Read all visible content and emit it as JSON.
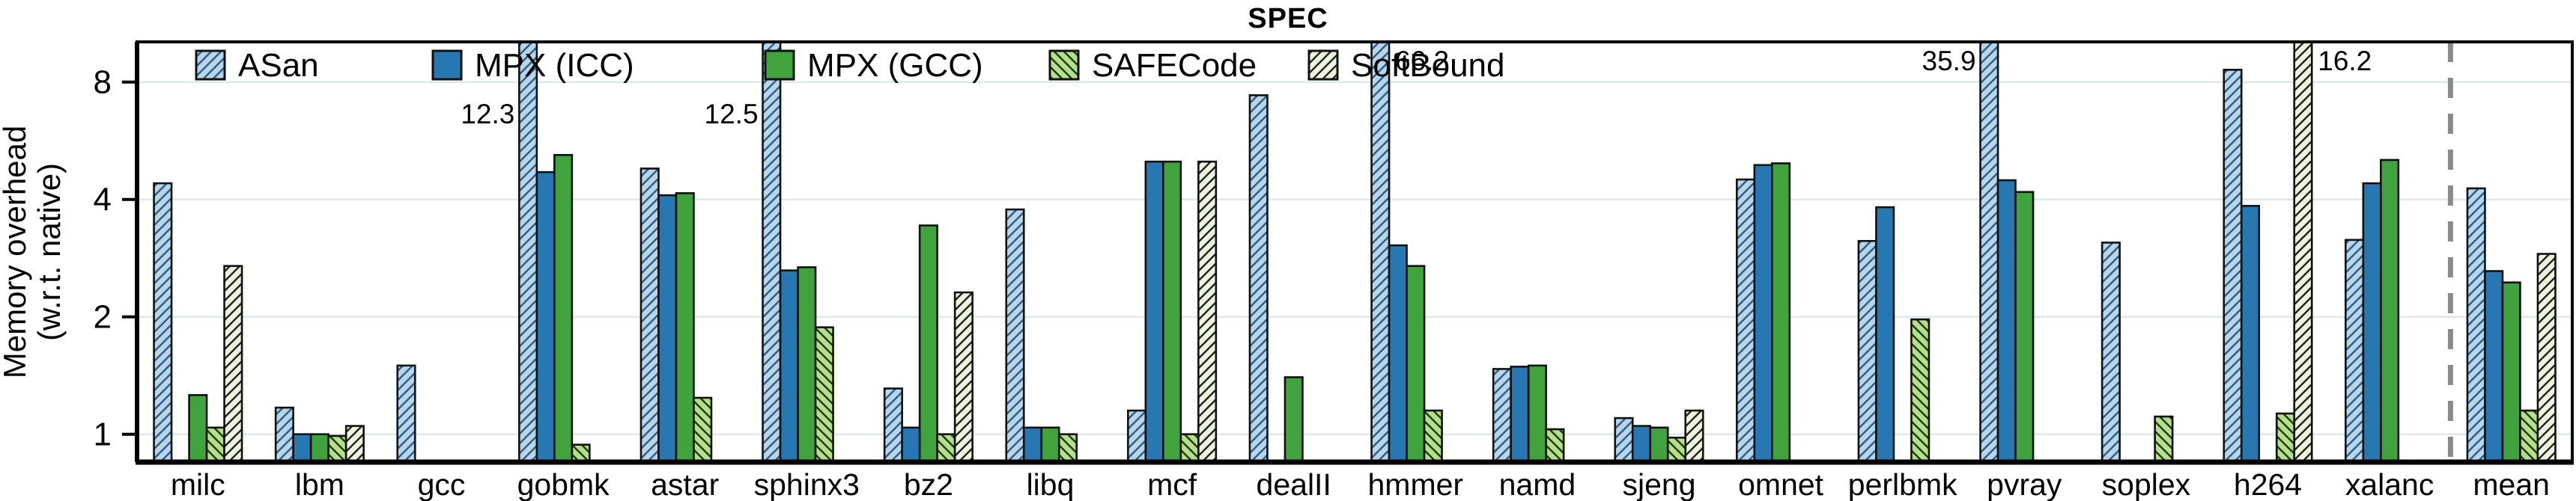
{
  "chart_data": {
    "type": "bar",
    "title": "SPEC",
    "ylabel_line1": "Memory overhead",
    "ylabel_line2": "(w.r.t. native)",
    "yscale": "log2",
    "yticks": [
      "1",
      "2",
      "4",
      "8"
    ],
    "ytick_values": [
      1,
      2,
      4,
      8
    ],
    "ylim": [
      0.85,
      10.1
    ],
    "grid": true,
    "legend_position": "top-left-inside",
    "categories": [
      "milc",
      "lbm",
      "gcc",
      "gobmk",
      "astar",
      "sphinx3",
      "bz2",
      "libq",
      "mcf",
      "dealII",
      "hmmer",
      "namd",
      "sjeng",
      "omnet",
      "perlbmk",
      "pvray",
      "soplex",
      "h264",
      "xalanc",
      "mean"
    ],
    "series": [
      {
        "name": "ASan",
        "style": "hatch-slash-blue",
        "fill": "#b9d5e9",
        "hatch": "#2a5d87",
        "values": [
          4.4,
          1.17,
          1.5,
          12.3,
          4.8,
          12.5,
          1.31,
          3.77,
          1.15,
          7.4,
          66.2,
          1.47,
          1.1,
          4.5,
          3.13,
          35.9,
          3.1,
          8.6,
          3.15,
          4.27
        ]
      },
      {
        "name": "MPX (ICC)",
        "style": "solid-blue",
        "fill": "#2778b2",
        "hatch": null,
        "values": [
          null,
          1.0,
          null,
          4.7,
          4.1,
          2.63,
          1.04,
          1.04,
          5.0,
          null,
          3.05,
          1.49,
          1.05,
          4.9,
          3.82,
          4.48,
          null,
          3.85,
          4.4,
          2.62
        ]
      },
      {
        "name": "MPX (GCC)",
        "style": "solid-green",
        "fill": "#41a33d",
        "hatch": null,
        "values": [
          1.26,
          1.0,
          null,
          5.2,
          4.15,
          2.68,
          3.43,
          1.04,
          5.0,
          1.4,
          2.7,
          1.5,
          1.04,
          4.95,
          null,
          4.18,
          null,
          null,
          5.05,
          2.45
        ]
      },
      {
        "name": "SAFECode",
        "style": "hatch-backslash-green",
        "fill": "#b6de8b",
        "hatch": "#1d3a10",
        "values": [
          1.04,
          0.99,
          null,
          0.94,
          1.24,
          1.88,
          1.0,
          1.0,
          1.0,
          null,
          1.15,
          1.03,
          0.98,
          null,
          1.97,
          null,
          1.11,
          1.13,
          null,
          1.15
        ]
      },
      {
        "name": "SoftBound",
        "style": "hatch-slash-cream",
        "fill": "#eef3dd",
        "hatch": "#222222",
        "values": [
          2.7,
          1.05,
          null,
          null,
          null,
          null,
          2.31,
          null,
          5.0,
          null,
          null,
          null,
          1.15,
          null,
          null,
          null,
          null,
          16.2,
          null,
          2.9
        ]
      }
    ],
    "cut_annotations": [
      {
        "category": "gobmk",
        "series": "ASan",
        "label": "12.3",
        "side": "left",
        "level": "low"
      },
      {
        "category": "sphinx3",
        "series": "ASan",
        "label": "12.5",
        "side": "left",
        "level": "low"
      },
      {
        "category": "hmmer",
        "series": "ASan",
        "label": "66.2",
        "side": "right",
        "level": "high"
      },
      {
        "category": "pvray",
        "series": "ASan",
        "label": "35.9",
        "side": "left",
        "level": "high"
      },
      {
        "category": "h264",
        "series": "SoftBound",
        "label": "16.2",
        "side": "right",
        "level": "high"
      }
    ],
    "separator_before_category": "mean",
    "colors": {
      "grid": "#dfe8e8",
      "axis": "#000000",
      "bar_outline": "#111111",
      "separator": "#8a8a8a",
      "text": "#000000"
    }
  }
}
